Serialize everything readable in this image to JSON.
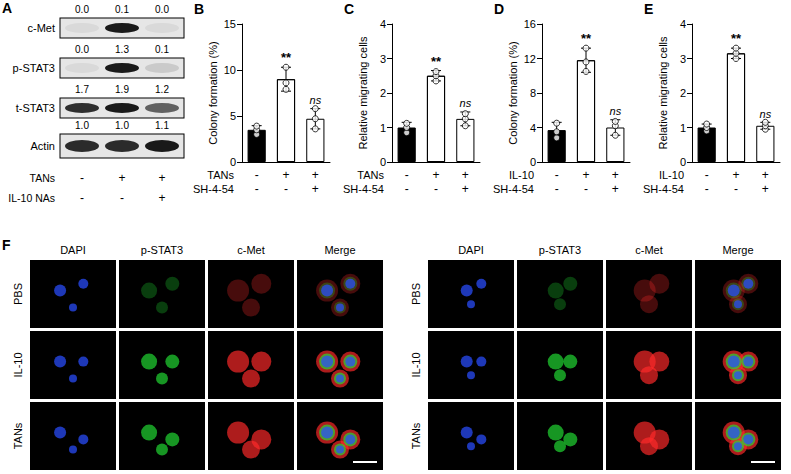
{
  "blot": {
    "label": "A",
    "bands": [
      {
        "name": "c-Met",
        "quant": [
          "0.0",
          "0.1",
          "0.0"
        ]
      },
      {
        "name": "p-STAT3",
        "quant": [
          "0.0",
          "1.3",
          "0.1"
        ]
      },
      {
        "name": "t-STAT3",
        "quant": [
          "1.7",
          "1.9",
          "1.2"
        ]
      },
      {
        "name": "Actin",
        "quant": [
          "1.0",
          "1.0",
          "1.1"
        ]
      }
    ],
    "conditions": [
      {
        "name": "TANs",
        "signs": [
          "-",
          "+",
          "+"
        ]
      },
      {
        "name": "IL-10 NAs",
        "signs": [
          "-",
          "-",
          "+"
        ]
      }
    ]
  },
  "chart_data": [
    {
      "label": "B",
      "type": "bar",
      "ylabel": "Colony formation (%)",
      "categories": [
        null,
        null,
        null
      ],
      "conditions": [
        {
          "name": "TANs",
          "signs": [
            "-",
            "+",
            "+"
          ]
        },
        {
          "name": "SH-4-54",
          "signs": [
            "-",
            "-",
            "+"
          ]
        }
      ],
      "values": [
        3.5,
        9.0,
        4.7
      ],
      "errors": [
        0.45,
        1.3,
        1.1
      ],
      "points": [
        [
          3.0,
          3.5,
          3.9
        ],
        [
          7.9,
          8.6,
          10.3
        ],
        [
          3.6,
          4.7,
          5.8
        ]
      ],
      "significance": [
        null,
        "**",
        "ns"
      ],
      "colors": [
        "#000000",
        "#ffffff",
        "#ffffff"
      ],
      "ylim": [
        0,
        15
      ],
      "yticks": [
        0,
        5,
        10,
        15
      ]
    },
    {
      "label": "C",
      "type": "bar",
      "ylabel": "Relative migrating cells",
      "categories": [
        null,
        null,
        null
      ],
      "conditions": [
        {
          "name": "TANs",
          "signs": [
            "-",
            "+",
            "+"
          ]
        },
        {
          "name": "SH-4-54",
          "signs": [
            "-",
            "-",
            "+"
          ]
        }
      ],
      "values": [
        1.0,
        2.5,
        1.25
      ],
      "errors": [
        0.15,
        0.15,
        0.2
      ],
      "points": [
        [
          0.85,
          1.0,
          1.12
        ],
        [
          2.35,
          2.5,
          2.62
        ],
        [
          1.05,
          1.25,
          1.4
        ]
      ],
      "significance": [
        null,
        "**",
        "ns"
      ],
      "colors": [
        "#000000",
        "#ffffff",
        "#ffffff"
      ],
      "ylim": [
        0,
        4
      ],
      "yticks": [
        0,
        1,
        2,
        3,
        4
      ]
    },
    {
      "label": "D",
      "type": "bar",
      "ylabel": "Colony formation (%)",
      "categories": [
        null,
        null,
        null
      ],
      "conditions": [
        {
          "name": "IL-10",
          "signs": [
            "-",
            "+",
            "+"
          ]
        },
        {
          "name": "SH-4-54",
          "signs": [
            "-",
            "-",
            "+"
          ]
        }
      ],
      "values": [
        3.7,
        11.8,
        4.0
      ],
      "errors": [
        0.9,
        1.4,
        0.9
      ],
      "points": [
        [
          2.8,
          3.5,
          4.5
        ],
        [
          10.5,
          11.6,
          13.2
        ],
        [
          3.1,
          4.2,
          4.7
        ]
      ],
      "significance": [
        null,
        "**",
        "ns"
      ],
      "colors": [
        "#000000",
        "#ffffff",
        "#ffffff"
      ],
      "ylim": [
        0,
        16
      ],
      "yticks": [
        0,
        4,
        8,
        12,
        16
      ]
    },
    {
      "label": "E",
      "type": "bar",
      "ylabel": "Relative migrating cells",
      "categories": [
        null,
        null,
        null
      ],
      "conditions": [
        {
          "name": "IL-10",
          "signs": [
            "-",
            "+",
            "+"
          ]
        },
        {
          "name": "SH-4-54",
          "signs": [
            "-",
            "-",
            "+"
          ]
        }
      ],
      "values": [
        1.0,
        3.15,
        1.05
      ],
      "errors": [
        0.1,
        0.15,
        0.1
      ],
      "points": [
        [
          0.9,
          1.0,
          1.1
        ],
        [
          3.0,
          3.15,
          3.3
        ],
        [
          0.95,
          1.05,
          1.15
        ]
      ],
      "significance": [
        null,
        "**",
        "ns"
      ],
      "colors": [
        "#000000",
        "#ffffff",
        "#ffffff"
      ],
      "ylim": [
        0,
        4
      ],
      "yticks": [
        0,
        1,
        2,
        3,
        4
      ]
    }
  ],
  "images": {
    "label": "F",
    "panels": [
      {
        "columns": [
          "DAPI",
          "p-STAT3",
          "c-Met",
          "Merge"
        ],
        "rows": [
          "PBS",
          "IL-10",
          "TANs"
        ]
      },
      {
        "columns": [
          "DAPI",
          "p-STAT3",
          "c-Met",
          "Merge"
        ],
        "rows": [
          "PBS",
          "IL-10",
          "TANs"
        ]
      }
    ]
  }
}
